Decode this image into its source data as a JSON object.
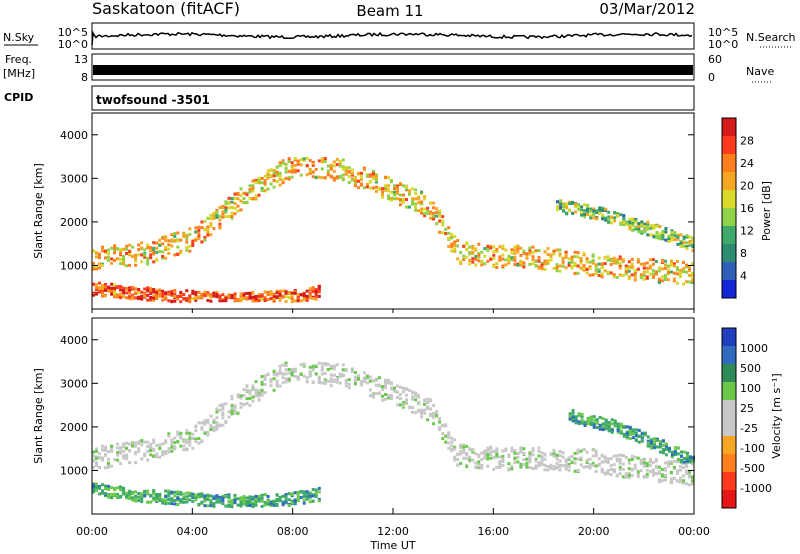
{
  "header": {
    "station": "Saskatoon (fitACF)",
    "beam": "Beam 11",
    "date": "03/Mar/2012"
  },
  "sky_panel": {
    "left_label": "N.Sky",
    "right_label": "N.Search",
    "left_ticks": [
      "10^5",
      "10^0"
    ],
    "right_ticks": [
      "10^5",
      "10^0"
    ]
  },
  "freq_panel": {
    "left_label_top": "Freq.",
    "left_label_bottom": "[MHz]",
    "left_ticks": [
      "13",
      "8"
    ],
    "right_label": "Nave",
    "right_ticks": [
      "60",
      "0"
    ]
  },
  "cpid_panel": {
    "label": "CPID",
    "value": "twofsound -3501"
  },
  "chart_data": [
    {
      "type": "heatmap",
      "name": "power",
      "ylabel": "Slant Range [km]",
      "ylim": [
        0,
        4500
      ],
      "yticks": [
        "1000",
        "2000",
        "3000",
        "4000"
      ],
      "xlim": [
        "00:00",
        "24:00"
      ],
      "colorbar_label": "Power [dB]",
      "colorbar_ticks": [
        "28",
        "24",
        "20",
        "16",
        "12",
        "8",
        "4"
      ],
      "colorbar_colors": [
        "#d41a1a",
        "#ff3b1f",
        "#ff7f1e",
        "#f5a623",
        "#d9d92b",
        "#8fd24a",
        "#3ea96b",
        "#2d8c70",
        "#2f5fb8",
        "#1526d9"
      ],
      "bands": [
        {
          "t": [
            0,
            2,
            4,
            6,
            8,
            10,
            12,
            13.5,
            14.5,
            16,
            18,
            20,
            22,
            24
          ],
          "range": [
            1200,
            1300,
            1650,
            2600,
            3350,
            3200,
            2750,
            2350,
            1350,
            1250,
            1200,
            1050,
            920,
            850
          ],
          "value": 20
        },
        {
          "t": [
            0,
            2,
            4,
            6,
            8,
            9
          ],
          "range": [
            500,
            380,
            300,
            250,
            320,
            420
          ],
          "value": 26
        },
        {
          "t": [
            18.5,
            20,
            22,
            24
          ],
          "range": [
            2400,
            2250,
            1900,
            1500
          ],
          "value": 14
        }
      ]
    },
    {
      "type": "heatmap",
      "name": "velocity",
      "ylabel": "Slant Range [km]",
      "ylim": [
        0,
        4500
      ],
      "yticks": [
        "1000",
        "2000",
        "3000",
        "4000"
      ],
      "xlim": [
        "00:00",
        "24:00"
      ],
      "xticks": [
        "00:00",
        "04:00",
        "08:00",
        "12:00",
        "16:00",
        "20:00",
        "00:00"
      ],
      "xlabel": "Time UT",
      "colorbar_label": "Velocity [m s⁻¹]",
      "colorbar_ticks": [
        "1000",
        "500",
        "100",
        "25",
        "-25",
        "-100",
        "-500",
        "-1000"
      ],
      "colorbar_colors": [
        "#1f3fbf",
        "#2f6cc0",
        "#2e8b57",
        "#6ac94a",
        "#c8c8c8",
        "#c8c8c8",
        "#f5a623",
        "#ff7f1e",
        "#ff3b1f",
        "#e51616"
      ],
      "bands": [
        {
          "t": [
            0,
            2,
            4,
            6,
            8,
            10,
            12,
            13.5,
            14.5,
            16,
            18,
            20,
            22,
            24
          ],
          "range": [
            1300,
            1500,
            1800,
            2700,
            3350,
            3200,
            2800,
            2400,
            1400,
            1300,
            1300,
            1250,
            1050,
            950
          ],
          "value": 0
        },
        {
          "t": [
            0,
            2,
            4,
            6,
            8,
            9
          ],
          "range": [
            600,
            450,
            380,
            300,
            380,
            480
          ],
          "value": 120
        },
        {
          "t": [
            19,
            21,
            23,
            24
          ],
          "range": [
            2300,
            2000,
            1500,
            1200
          ],
          "value": 400
        }
      ]
    }
  ]
}
